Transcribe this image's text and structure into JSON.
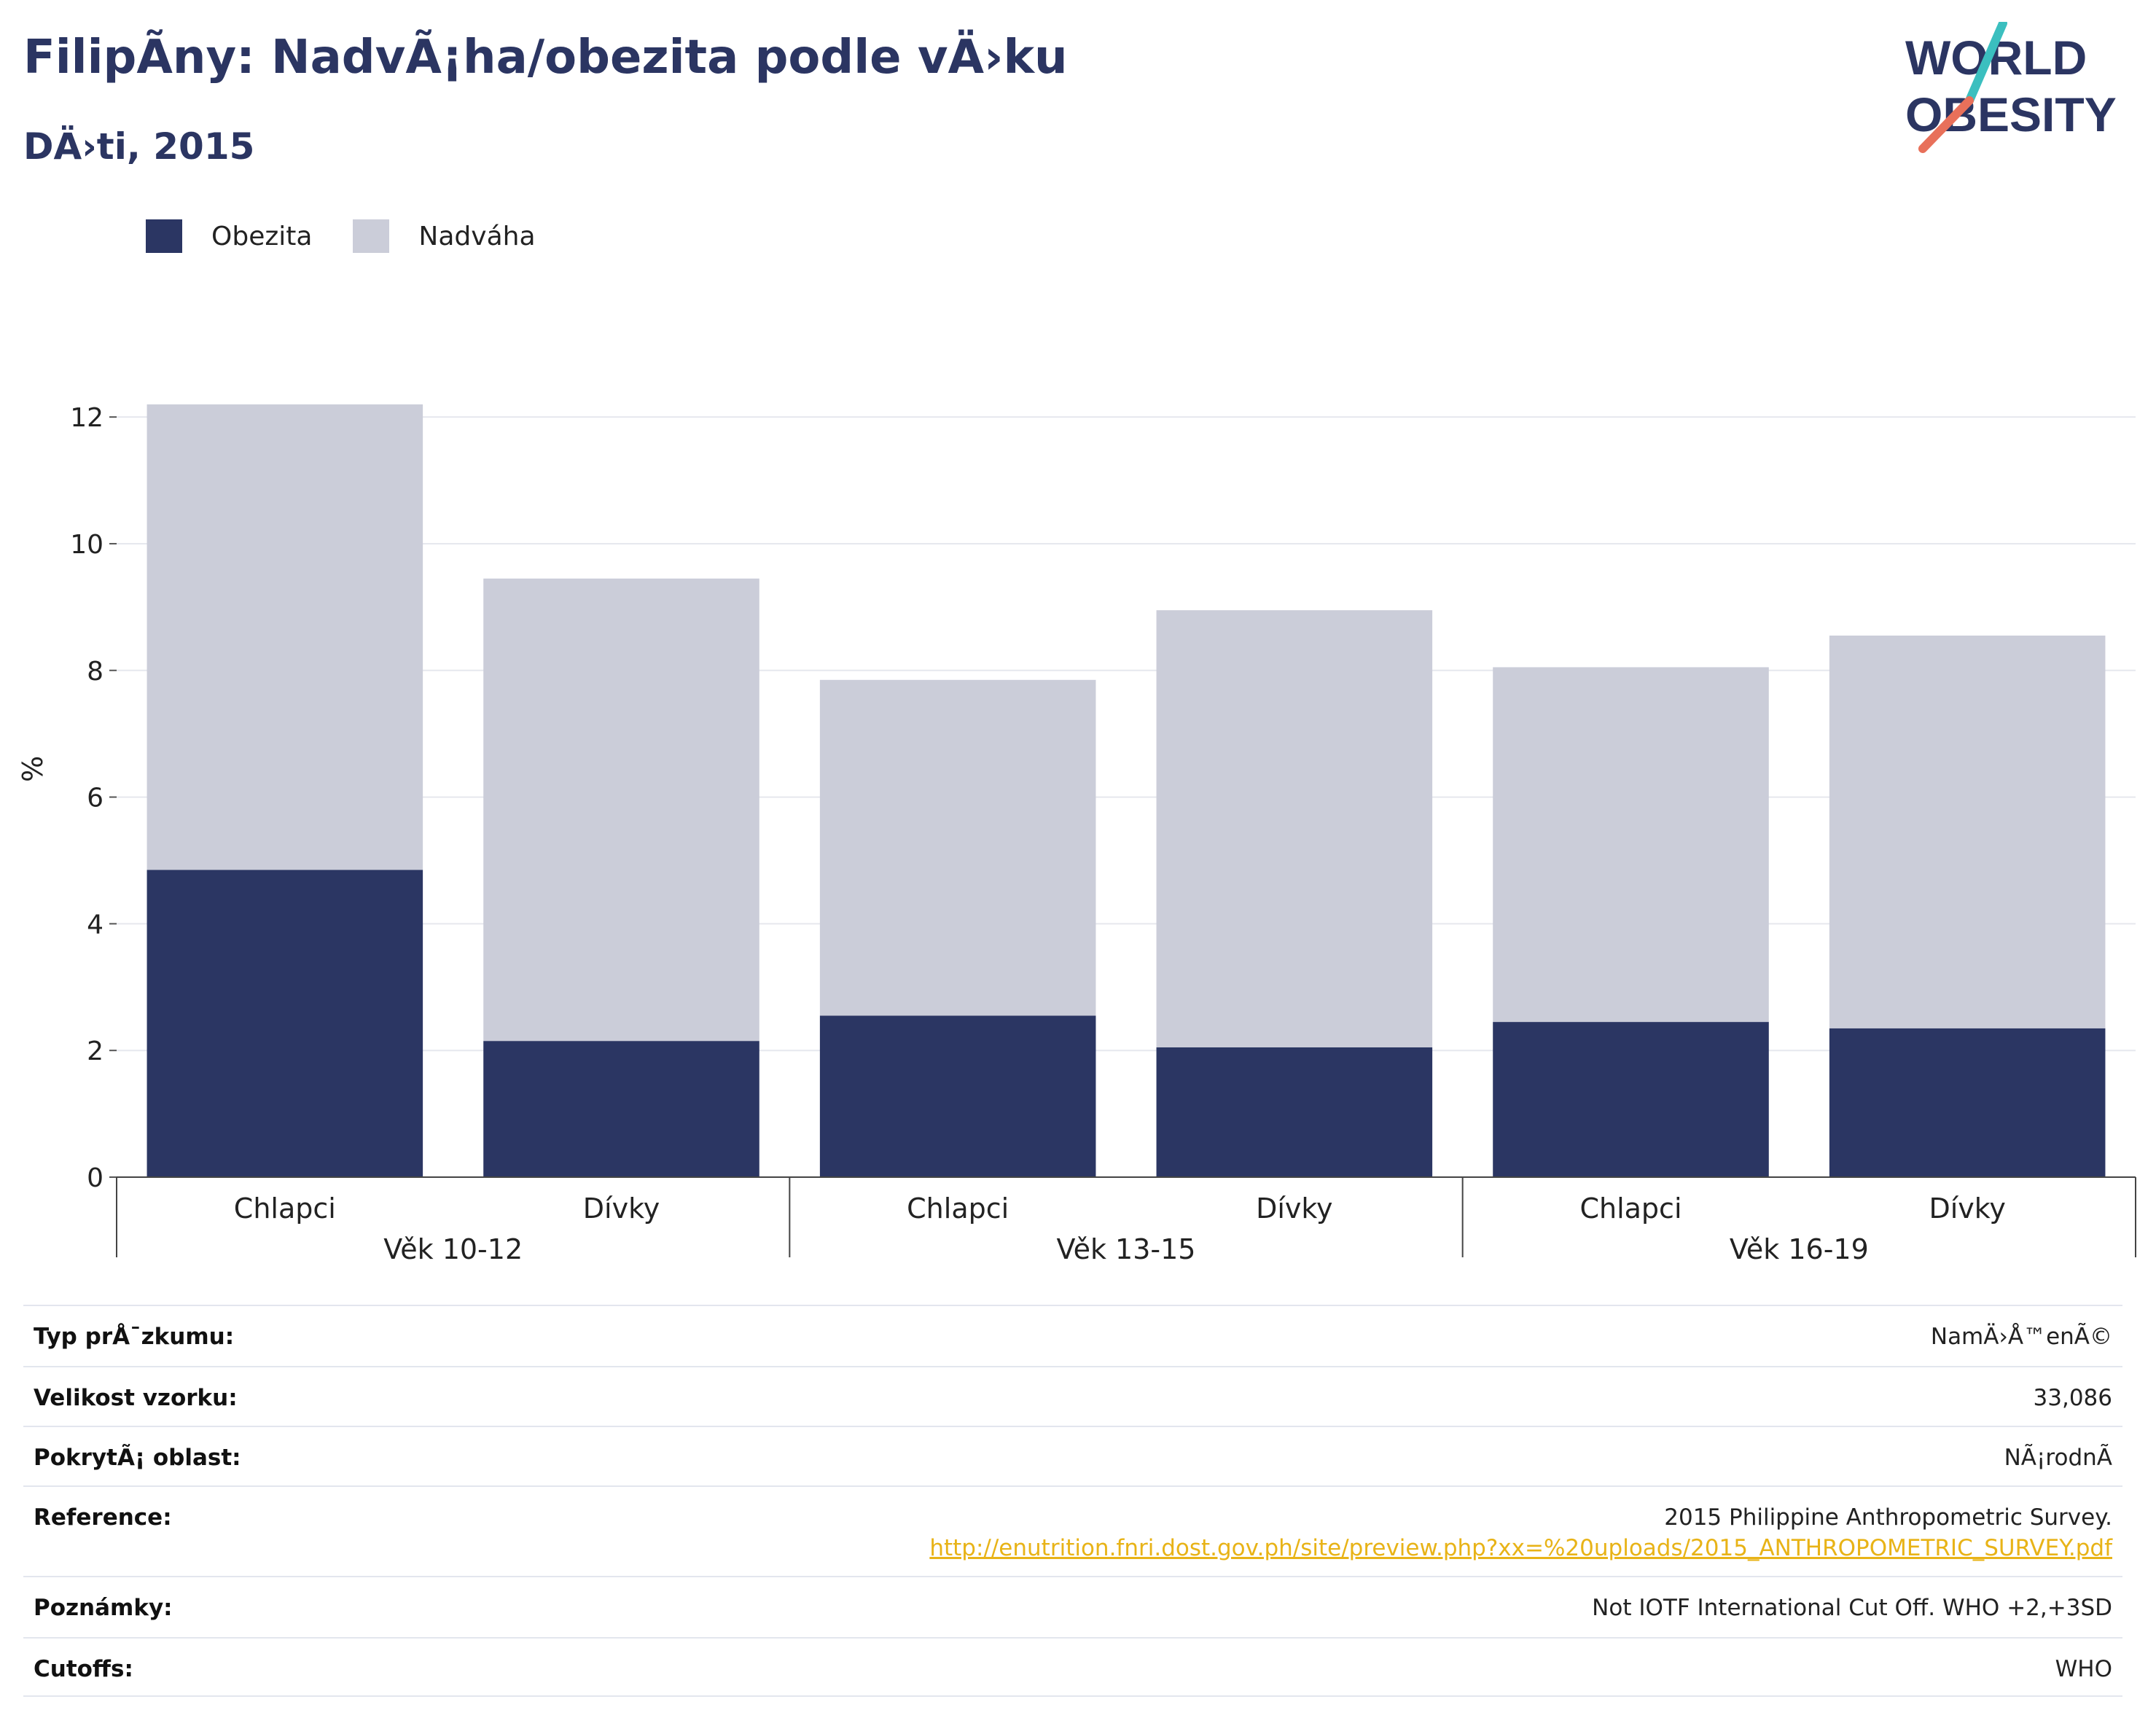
{
  "header": {
    "title": "FilipÃny: NadvÃ¡ha/obezita podle vÄ›ku",
    "subtitle": "DÄ›ti, 2015"
  },
  "logo": {
    "line1": "WORLD",
    "line2": "OBESITY"
  },
  "colors": {
    "obezita": "#2b3663",
    "nadvaha": "#cbcdd9",
    "title": "#2b3562",
    "link": "#e8b317",
    "logo_teal": "#3bbfbf",
    "logo_coral": "#e8705a"
  },
  "chart_data": {
    "type": "bar",
    "stacked": true,
    "ylabel": "%",
    "ylim": [
      0,
      12.6
    ],
    "yticks": [
      0,
      2,
      4,
      6,
      8,
      10,
      12
    ],
    "grid": true,
    "legend_position": "top-left",
    "categories": [
      "Chlapci",
      "Dívky",
      "Chlapci",
      "Dívky",
      "Chlapci",
      "Dívky"
    ],
    "groups": [
      {
        "label": "Věk 10-12",
        "categories": [
          0,
          1
        ]
      },
      {
        "label": "Věk 13-15",
        "categories": [
          2,
          3
        ]
      },
      {
        "label": "Věk 16-19",
        "categories": [
          4,
          5
        ]
      }
    ],
    "series": [
      {
        "name": "Obezita",
        "values": [
          4.85,
          2.15,
          2.55,
          2.05,
          2.45,
          2.35
        ]
      },
      {
        "name": "Nadváha",
        "values": [
          7.35,
          7.3,
          5.3,
          6.9,
          5.6,
          6.2
        ]
      }
    ]
  },
  "meta": [
    {
      "key": "Typ prÅ¯zkumu:",
      "value": "NamÄ›Å™enÃ©"
    },
    {
      "key": "Velikost vzorku:",
      "value": "33,086"
    },
    {
      "key": "PokrytÃ¡ oblast:",
      "value": "NÃ¡rodnÃ"
    },
    {
      "key": "Reference:",
      "value": "2015 Philippine Anthropometric Survey.",
      "link": "http://enutrition.fnri.dost.gov.ph/site/preview.php?xx=%20uploads/2015_ANTHROPOMETRIC_SURVEY.pdf"
    },
    {
      "key": "Poznámky:",
      "value": "Not IOTF International Cut Off. WHO +2,+3SD"
    },
    {
      "key": "Cutoffs:",
      "value": "WHO"
    }
  ]
}
